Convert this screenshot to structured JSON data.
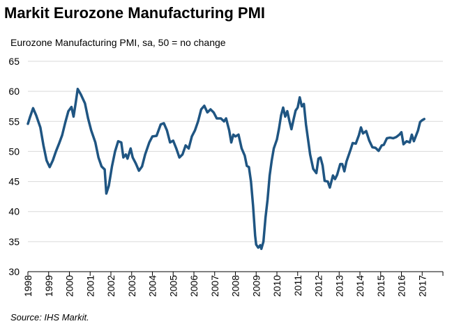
{
  "chart_data": {
    "type": "line",
    "title": "Markit Eurozone Manufacturing PMI",
    "subtitle": "Eurozone Manufacturing PMI, sa, 50 = no change",
    "source": "Source: IHS Markit.",
    "color": "#1f5582",
    "x": [
      1998.0,
      1998.1,
      1998.25,
      1998.4,
      1998.6,
      1998.75,
      1998.9,
      1999.05,
      1999.2,
      1999.35,
      1999.5,
      1999.65,
      1999.8,
      1999.95,
      2000.1,
      2000.2,
      2000.3,
      2000.4,
      2000.55,
      2000.75,
      2000.9,
      2001.05,
      2001.25,
      2001.4,
      2001.55,
      2001.7,
      2001.78,
      2001.9,
      2002.05,
      2002.2,
      2002.35,
      2002.5,
      2002.6,
      2002.72,
      2002.8,
      2002.95,
      2003.05,
      2003.2,
      2003.35,
      2003.5,
      2003.65,
      2003.85,
      2004.0,
      2004.2,
      2004.4,
      2004.55,
      2004.7,
      2004.85,
      2005.0,
      2005.15,
      2005.3,
      2005.45,
      2005.6,
      2005.75,
      2005.9,
      2006.05,
      2006.2,
      2006.35,
      2006.5,
      2006.65,
      2006.8,
      2006.95,
      2007.1,
      2007.3,
      2007.45,
      2007.55,
      2007.7,
      2007.8,
      2007.9,
      2008.0,
      2008.15,
      2008.3,
      2008.45,
      2008.55,
      2008.65,
      2008.75,
      2008.85,
      2008.95,
      2009.0,
      2009.1,
      2009.2,
      2009.25,
      2009.35,
      2009.45,
      2009.55,
      2009.65,
      2009.75,
      2009.85,
      2010.0,
      2010.1,
      2010.2,
      2010.3,
      2010.4,
      2010.5,
      2010.6,
      2010.7,
      2010.8,
      2010.9,
      2011.0,
      2011.1,
      2011.2,
      2011.3,
      2011.4,
      2011.5,
      2011.6,
      2011.75,
      2011.9,
      2012.0,
      2012.1,
      2012.2,
      2012.3,
      2012.45,
      2012.55,
      2012.7,
      2012.8,
      2012.9,
      2013.05,
      2013.15,
      2013.25,
      2013.35,
      2013.55,
      2013.65,
      2013.8,
      2013.95,
      2014.05,
      2014.15,
      2014.3,
      2014.45,
      2014.6,
      2014.75,
      2014.9,
      2015.05,
      2015.15,
      2015.3,
      2015.45,
      2015.6,
      2015.75,
      2015.9,
      2016.0,
      2016.1,
      2016.25,
      2016.4,
      2016.5,
      2016.6,
      2016.7,
      2016.8,
      2016.9,
      2017.0,
      2017.1
    ],
    "values": [
      54.6,
      55.7,
      57.2,
      56,
      54,
      51,
      48.5,
      47.4,
      48.5,
      50,
      51.3,
      52.7,
      54.8,
      56.7,
      57.4,
      55.8,
      58,
      60.4,
      59.5,
      58,
      55.5,
      53.5,
      51.5,
      49,
      47.5,
      47,
      43,
      44.3,
      47.5,
      50,
      51.7,
      51.5,
      49,
      49.5,
      48.8,
      50.5,
      49,
      48,
      46.8,
      47.5,
      49.5,
      51.5,
      52.5,
      52.6,
      54.5,
      54.7,
      53.5,
      51.5,
      51.8,
      50.5,
      49,
      49.5,
      51,
      50.5,
      52.5,
      53.5,
      55,
      57,
      57.6,
      56.5,
      57,
      56.5,
      55.5,
      55.5,
      55,
      55.5,
      53.5,
      51.5,
      52.8,
      52.5,
      52.8,
      50.5,
      49.3,
      47.6,
      47.4,
      45,
      41,
      36,
      34.5,
      34,
      34.4,
      33.8,
      35,
      39,
      42,
      46,
      48.5,
      50.5,
      52,
      53.8,
      56,
      57.3,
      55.8,
      56.7,
      55.1,
      53.7,
      55.3,
      56.8,
      57.3,
      59,
      57.5,
      57.9,
      54.5,
      52,
      49.5,
      47.1,
      46.4,
      48.8,
      49,
      47.7,
      45.1,
      45,
      44,
      46,
      45.4,
      46.1,
      47.9,
      47.9,
      46.7,
      48.3,
      50.3,
      51.4,
      51.3,
      52.7,
      54,
      53,
      53.4,
      51.8,
      50.7,
      50.6,
      50.1,
      51,
      51.1,
      52.2,
      52.3,
      52.2,
      52.4,
      52.8,
      53.2,
      51.2,
      51.7,
      51.5,
      52.8,
      51.7,
      52.6,
      53.5,
      54.9,
      55.2,
      55.4
    ],
    "xlim": [
      1998,
      2018
    ],
    "xticks": [
      1998,
      1999,
      2000,
      2001,
      2002,
      2003,
      2004,
      2005,
      2006,
      2007,
      2008,
      2009,
      2010,
      2011,
      2012,
      2013,
      2014,
      2015,
      2016,
      2017
    ],
    "ylim": [
      30,
      65
    ],
    "yticks": [
      30,
      35,
      40,
      45,
      50,
      55,
      60,
      65
    ],
    "grid": true
  }
}
